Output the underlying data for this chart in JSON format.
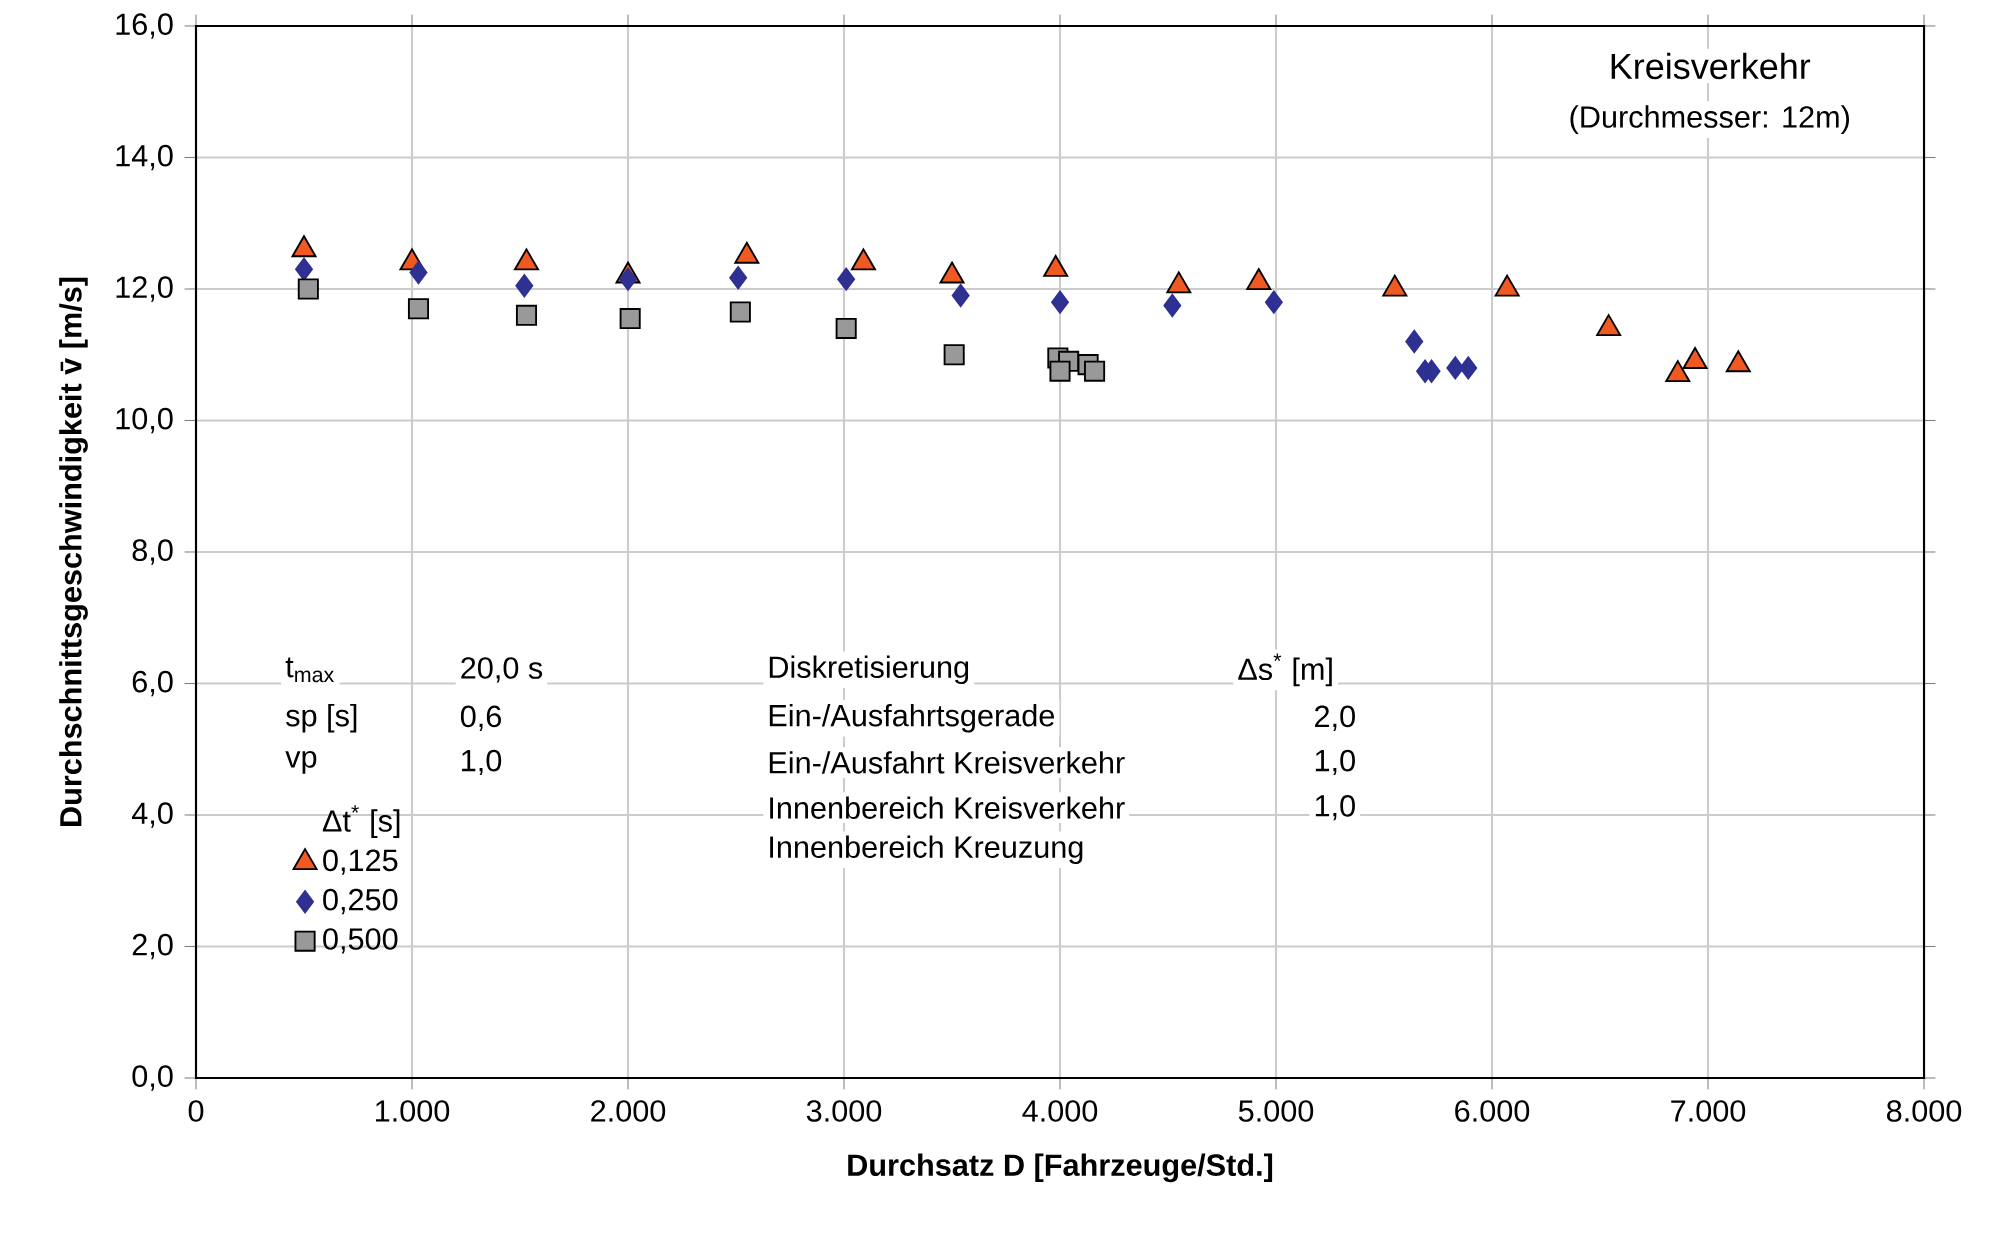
{
  "chart_data": {
    "type": "scatter",
    "xlabel": "Durchsatz D [Fahrzeuge/Std.]",
    "ylabel": "Durchschnittsgeschwindigkeit v̄ [m/s]",
    "legend_title": "Δt$^{*}$ [s]",
    "xlim": [
      0,
      8000
    ],
    "ylim": [
      0,
      16
    ],
    "xticks": [
      0,
      {
        "value": 1000,
        "label": "1.000"
      },
      {
        "value": 2000,
        "label": "2.000"
      },
      {
        "value": 3000,
        "label": "3.000"
      },
      {
        "value": 4000,
        "label": "4.000"
      },
      {
        "value": 5000,
        "label": "5.000"
      },
      {
        "value": 6000,
        "label": "6.000"
      },
      {
        "value": 7000,
        "label": "7.000"
      },
      {
        "value": 8000,
        "label": "8.000"
      }
    ],
    "yticks": [
      {
        "value": 0,
        "label": "0,0"
      },
      {
        "value": 2,
        "label": "2,0"
      },
      {
        "value": 4,
        "label": "4,0"
      },
      {
        "value": 6,
        "label": "6,0"
      },
      {
        "value": 8,
        "label": "8,0"
      },
      {
        "value": 10,
        "label": "10,0"
      },
      {
        "value": 12,
        "label": "12,0"
      },
      {
        "value": 14,
        "label": "14,0"
      },
      {
        "value": 16,
        "label": "16,0"
      }
    ],
    "grid": true,
    "legend": "left",
    "series": [
      {
        "name": "0,125",
        "color": "#f05a22",
        "marker": "triangle",
        "x": [
          500,
          1000,
          1530,
          2000,
          2550,
          3090,
          3500,
          3980,
          4550,
          4920,
          5550,
          6070,
          6540,
          6860,
          6940,
          7140
        ],
        "values": [
          12.6,
          12.4,
          12.4,
          12.2,
          12.5,
          12.4,
          12.2,
          12.3,
          12.05,
          12.1,
          12.0,
          12.0,
          11.4,
          10.7,
          10.9,
          10.85
        ]
      },
      {
        "name": "0,250",
        "color": "#2e3192",
        "marker": "diamond",
        "x": [
          500,
          1030,
          1520,
          2000,
          2510,
          3010,
          3540,
          4000,
          4520,
          4990,
          5640,
          5690,
          5720,
          5830,
          5890
        ],
        "values": [
          12.3,
          12.25,
          12.05,
          12.15,
          12.17,
          12.15,
          11.9,
          11.8,
          11.75,
          11.8,
          11.2,
          10.75,
          10.75,
          10.8,
          10.8
        ]
      },
      {
        "name": "0,500",
        "color": "#999999",
        "marker": "square",
        "x": [
          520,
          1030,
          1530,
          2010,
          2520,
          3010,
          3510,
          3990,
          4040,
          4000,
          4130,
          4160
        ],
        "values": [
          12.0,
          11.7,
          11.6,
          11.55,
          11.65,
          11.4,
          11.0,
          10.95,
          10.9,
          10.75,
          10.85,
          10.75
        ]
      }
    ],
    "annotations": [
      "Kreisverkehr",
      "(Durchmesser: 12m)",
      "t$_{max}$",
      "20,0 s",
      "sp [s]",
      "0,6",
      "vp",
      "1,0",
      "Diskretisierung",
      "Δs$^{*}$ [m]",
      "Ein-/Ausfahrtsgerade",
      "2,0",
      "Ein-/Ausfahrt Kreisverkehr",
      "1,0",
      "Innenbereich Kreisverkehr",
      "1,0",
      "Innenbereich Kreuzung"
    ]
  }
}
